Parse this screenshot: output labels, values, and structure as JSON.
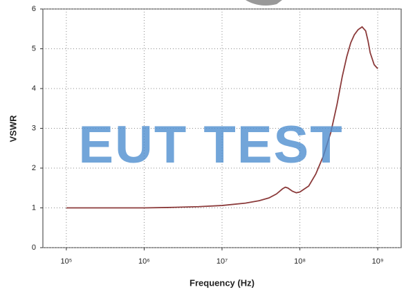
{
  "chart_data": {
    "type": "line",
    "x_label": "Frequency (Hz)",
    "y_label": "VSWR",
    "watermark": "EUT TEST",
    "x_log": true,
    "grid": true,
    "xlim": [
      50000,
      2000000000
    ],
    "ylim": [
      0,
      6
    ],
    "xticks": [
      {
        "value": 100000,
        "label": "10⁵"
      },
      {
        "value": 1000000,
        "label": "10⁶"
      },
      {
        "value": 10000000,
        "label": "10⁷"
      },
      {
        "value": 100000000,
        "label": "10⁸"
      },
      {
        "value": 1000000000,
        "label": "10⁹"
      }
    ],
    "yticks": [
      0,
      1,
      2,
      3,
      4,
      5,
      6
    ],
    "x": [
      100000,
      1000000,
      2000000,
      5000000,
      10000000,
      20000000,
      30000000,
      40000000,
      50000000,
      60000000,
      65000000,
      70000000,
      80000000,
      90000000,
      100000000,
      130000000,
      160000000,
      200000000,
      250000000,
      300000000,
      350000000,
      400000000,
      450000000,
      500000000,
      560000000,
      630000000,
      700000000,
      750000000,
      800000000,
      900000000,
      1000000000
    ],
    "series": [
      {
        "color": "#8b3a3a",
        "values": [
          1.0,
          1.0,
          1.01,
          1.03,
          1.06,
          1.12,
          1.18,
          1.25,
          1.35,
          1.48,
          1.52,
          1.5,
          1.42,
          1.38,
          1.4,
          1.55,
          1.85,
          2.3,
          2.9,
          3.6,
          4.3,
          4.8,
          5.15,
          5.35,
          5.48,
          5.55,
          5.45,
          5.2,
          4.9,
          4.6,
          4.5
        ]
      }
    ]
  }
}
